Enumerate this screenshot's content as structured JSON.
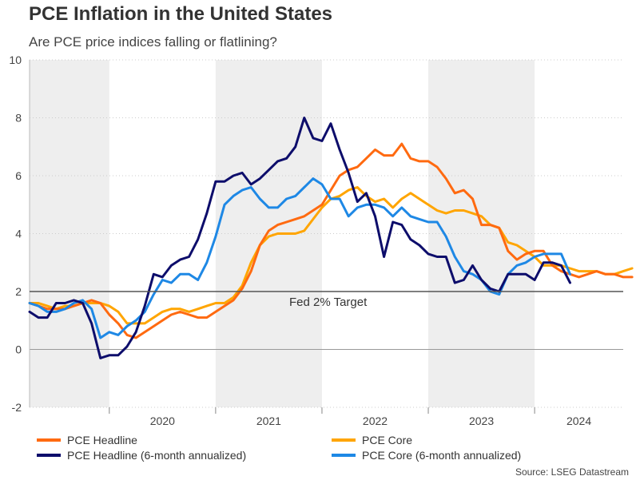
{
  "title": "PCE Inflation in the United States",
  "subtitle": "Are PCE price indices falling or flatlining?",
  "source": "Source: LSEG Datastream",
  "colors": {
    "headline": "#ff6a10",
    "core": "#ffa500",
    "headline_6m": "#0d0d6b",
    "core_6m": "#1e88e5",
    "target_line": "#555555",
    "shade": "#eeeeee",
    "grid": "#cccccc"
  },
  "chart_data": {
    "type": "line",
    "title": "PCE Inflation in the United States",
    "subtitle": "Are PCE price indices falling or flatlining?",
    "ylim": [
      -2,
      10
    ],
    "y_ticks": [
      -2,
      0,
      2,
      4,
      6,
      8,
      10
    ],
    "x_range": [
      "2019-04",
      "2024-11"
    ],
    "x_tick_labels": [
      "2020",
      "2021",
      "2022",
      "2023",
      "2024"
    ],
    "grid": "horizontal dotted",
    "legend_position": "bottom",
    "shaded_years": [
      "2019",
      "2021",
      "2023"
    ],
    "reference_line": {
      "value": 2,
      "label": "Fed 2% Target"
    },
    "series": [
      {
        "name": "PCE Headline",
        "key": "headline",
        "start": "2019-04",
        "values": [
          1.6,
          1.5,
          1.4,
          1.4,
          1.4,
          1.5,
          1.6,
          1.7,
          1.6,
          1.2,
          0.9,
          0.5,
          0.4,
          0.6,
          0.8,
          1.0,
          1.2,
          1.3,
          1.2,
          1.1,
          1.1,
          1.3,
          1.5,
          1.7,
          2.1,
          2.7,
          3.6,
          4.1,
          4.3,
          4.4,
          4.5,
          4.6,
          4.8,
          5.0,
          5.5,
          6.0,
          6.2,
          6.3,
          6.6,
          6.9,
          6.7,
          6.7,
          7.1,
          6.6,
          6.5,
          6.5,
          6.3,
          5.9,
          5.4,
          5.5,
          5.2,
          4.3,
          4.3,
          4.2,
          3.4,
          3.1,
          3.3,
          3.4,
          3.4,
          2.9,
          2.7,
          2.6,
          2.5,
          2.6,
          2.7,
          2.6,
          2.6,
          2.5,
          2.5
        ]
      },
      {
        "name": "PCE Core",
        "key": "core",
        "start": "2019-04",
        "values": [
          1.6,
          1.6,
          1.5,
          1.4,
          1.5,
          1.5,
          1.6,
          1.6,
          1.6,
          1.5,
          1.3,
          0.9,
          0.9,
          0.9,
          1.1,
          1.3,
          1.4,
          1.4,
          1.3,
          1.4,
          1.5,
          1.6,
          1.6,
          1.8,
          2.2,
          3.0,
          3.6,
          3.9,
          4.0,
          4.0,
          4.0,
          4.1,
          4.5,
          4.9,
          5.2,
          5.3,
          5.5,
          5.6,
          5.3,
          5.1,
          5.2,
          4.9,
          5.2,
          5.4,
          5.2,
          5.0,
          4.8,
          4.7,
          4.8,
          4.8,
          4.7,
          4.6,
          4.3,
          4.2,
          3.7,
          3.6,
          3.4,
          3.2,
          2.9,
          2.9,
          2.9,
          2.8,
          2.7,
          2.7,
          2.7,
          2.6,
          2.6,
          2.7,
          2.8
        ]
      },
      {
        "name": "PCE Headline (6-month annualized)",
        "key": "headline_6m",
        "start": "2019-04",
        "values": [
          1.3,
          1.1,
          1.1,
          1.6,
          1.6,
          1.7,
          1.6,
          0.9,
          -0.3,
          -0.2,
          -0.2,
          0.1,
          0.6,
          1.5,
          2.6,
          2.5,
          2.9,
          3.1,
          3.2,
          3.8,
          4.7,
          5.8,
          5.8,
          6.0,
          6.1,
          5.7,
          5.9,
          6.2,
          6.5,
          6.6,
          7.0,
          8.0,
          7.3,
          7.2,
          7.8,
          6.9,
          6.1,
          5.1,
          5.4,
          4.6,
          3.2,
          4.4,
          4.3,
          3.8,
          3.6,
          3.3,
          3.2,
          3.2,
          2.3,
          2.4,
          2.9,
          2.4,
          2.1,
          2.0,
          2.6,
          2.6,
          2.6,
          2.4,
          3.0,
          3.0,
          2.9,
          2.3
        ]
      },
      {
        "name": "PCE Core (6-month annualized)",
        "key": "core_6m",
        "start": "2019-04",
        "values": [
          1.6,
          1.5,
          1.3,
          1.3,
          1.4,
          1.6,
          1.7,
          1.4,
          0.4,
          0.6,
          0.5,
          0.8,
          1.0,
          1.3,
          1.9,
          2.4,
          2.3,
          2.6,
          2.6,
          2.4,
          3.0,
          3.9,
          5.0,
          5.3,
          5.5,
          5.6,
          5.2,
          4.9,
          4.9,
          5.2,
          5.3,
          5.6,
          5.9,
          5.7,
          5.2,
          5.2,
          4.6,
          4.9,
          5.0,
          5.0,
          4.9,
          4.6,
          4.9,
          4.6,
          4.5,
          4.4,
          4.4,
          3.9,
          3.2,
          2.7,
          2.6,
          2.4,
          2.0,
          1.9,
          2.6,
          2.9,
          3.0,
          3.2,
          3.3,
          3.3,
          3.3,
          2.6
        ]
      }
    ]
  }
}
